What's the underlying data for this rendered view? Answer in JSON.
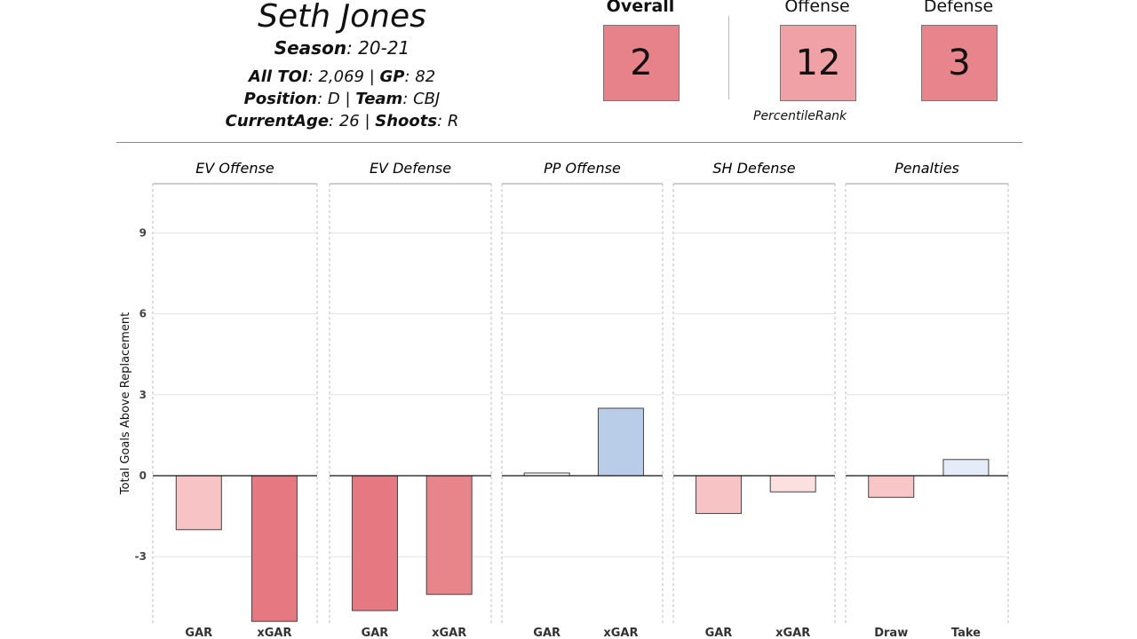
{
  "player": {
    "name": "Seth Jones",
    "season_label": "Season",
    "season": ": 20-21",
    "toi_label": "All TOI",
    "toi": ": 2,069 | ",
    "gp_label": "GP",
    "gp": ": 82",
    "position_label": "Position",
    "position": ": D | ",
    "team_label": "Team",
    "team": ": CBJ",
    "age_label": "CurrentAge",
    "age": ": 26 | ",
    "shoots_label": "Shoots",
    "shoots": ": R"
  },
  "ranks": {
    "overall_label": "Overall",
    "overall": "2",
    "overall_color": "#e8828a",
    "offense_label": "Offense",
    "offense": "12",
    "offense_color": "#f0a1a6",
    "defense_label": "Defense",
    "defense": "3",
    "defense_color": "#e8858c",
    "percentile_label": "PercentileRank"
  },
  "chart_data": {
    "type": "bar",
    "ylabel": "Total Goals Above Replacement",
    "yticks": [
      -3,
      0,
      3,
      6,
      9
    ],
    "ylim": [
      -5.4,
      10.8
    ],
    "grid": true,
    "panels": [
      {
        "title": "EV Offense",
        "categories": [
          "GAR",
          "xGAR"
        ],
        "values": [
          -2.0,
          -5.4
        ],
        "colors": [
          "#f7c3c5",
          "#e57880"
        ]
      },
      {
        "title": "EV Defense",
        "categories": [
          "GAR",
          "xGAR"
        ],
        "values": [
          -5.0,
          -4.4
        ],
        "colors": [
          "#e57880",
          "#e8858b"
        ]
      },
      {
        "title": "PP Offense",
        "categories": [
          "GAR",
          "xGAR"
        ],
        "values": [
          0.1,
          2.5
        ],
        "colors": [
          "#ffffff",
          "#b9cde9"
        ]
      },
      {
        "title": "SH Defense",
        "categories": [
          "GAR",
          "xGAR"
        ],
        "values": [
          -1.4,
          -0.6
        ],
        "colors": [
          "#f8c3c5",
          "#fce0e0"
        ]
      },
      {
        "title": "Penalties",
        "categories": [
          "Draw",
          "Take"
        ],
        "values": [
          -0.8,
          0.6
        ],
        "colors": [
          "#f9c6c7",
          "#e4ecf7"
        ]
      }
    ]
  }
}
